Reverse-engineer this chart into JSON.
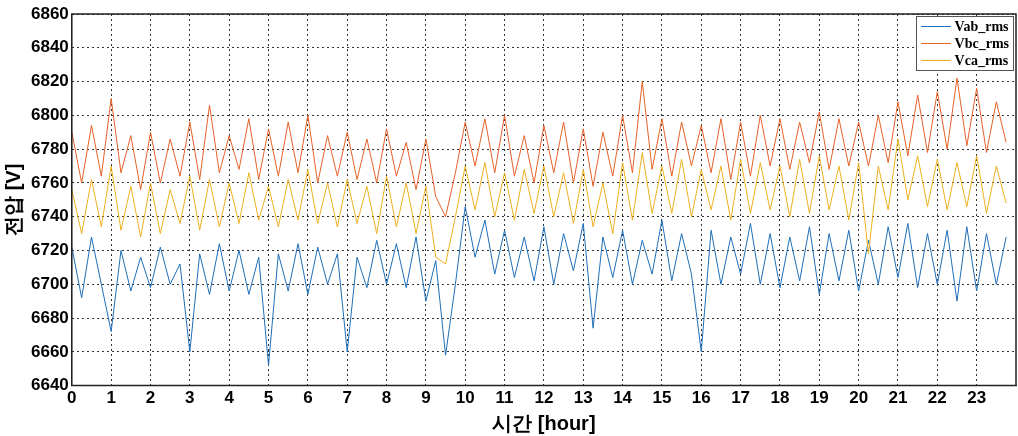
{
  "chart_data": {
    "type": "line",
    "xlabel": "시간 [hour]",
    "ylabel": "전압 [V]",
    "xlim": [
      0,
      24
    ],
    "ylim": [
      6640,
      6860
    ],
    "xticks": [
      0,
      1,
      2,
      3,
      4,
      5,
      6,
      7,
      8,
      9,
      10,
      11,
      12,
      13,
      14,
      15,
      16,
      17,
      18,
      19,
      20,
      21,
      22,
      23
    ],
    "yticks": [
      6640,
      6660,
      6680,
      6700,
      6720,
      6740,
      6760,
      6780,
      6800,
      6820,
      6840,
      6860
    ],
    "grid": true,
    "legend": "top right",
    "marker": "none",
    "line_style": "solid",
    "x": [
      0,
      0.25,
      0.5,
      0.75,
      1,
      1.25,
      1.5,
      1.75,
      2,
      2.25,
      2.5,
      2.75,
      3,
      3.25,
      3.5,
      3.75,
      4,
      4.25,
      4.5,
      4.75,
      5,
      5.25,
      5.5,
      5.75,
      6,
      6.25,
      6.5,
      6.75,
      7,
      7.25,
      7.5,
      7.75,
      8,
      8.25,
      8.5,
      8.75,
      9,
      9.25,
      9.5,
      9.75,
      10,
      10.25,
      10.5,
      10.75,
      11,
      11.25,
      11.5,
      11.75,
      12,
      12.25,
      12.5,
      12.75,
      13,
      13.25,
      13.5,
      13.75,
      14,
      14.25,
      14.5,
      14.75,
      15,
      15.25,
      15.5,
      15.75,
      16,
      16.25,
      16.5,
      16.75,
      17,
      17.25,
      17.5,
      17.75,
      18,
      18.25,
      18.5,
      18.75,
      19,
      19.25,
      19.5,
      19.75,
      20,
      20.25,
      20.5,
      20.75,
      21,
      21.25,
      21.5,
      21.75,
      22,
      22.25,
      22.5,
      22.75,
      23,
      23.25,
      23.5,
      23.75
    ],
    "series": [
      {
        "name": "Vab_rms",
        "color": "#1f6fb8",
        "values": [
          6722,
          6692,
          6728,
          6700,
          6672,
          6720,
          6696,
          6716,
          6698,
          6722,
          6700,
          6712,
          6660,
          6718,
          6694,
          6724,
          6696,
          6720,
          6694,
          6716,
          6652,
          6718,
          6696,
          6724,
          6694,
          6722,
          6700,
          6718,
          6660,
          6716,
          6698,
          6726,
          6700,
          6724,
          6698,
          6728,
          6690,
          6714,
          6658,
          6700,
          6746,
          6716,
          6738,
          6706,
          6732,
          6704,
          6728,
          6702,
          6734,
          6700,
          6730,
          6708,
          6736,
          6674,
          6728,
          6704,
          6732,
          6700,
          6726,
          6706,
          6738,
          6702,
          6730,
          6706,
          6660,
          6732,
          6700,
          6728,
          6706,
          6736,
          6700,
          6730,
          6698,
          6728,
          6702,
          6734,
          6694,
          6730,
          6702,
          6732,
          6696,
          6726,
          6700,
          6734,
          6704,
          6736,
          6698,
          6730,
          6700,
          6732,
          6690,
          6734,
          6696,
          6730,
          6700,
          6728
        ]
      },
      {
        "name": "Vbc_rms",
        "color": "#e56128",
        "values": [
          6790,
          6760,
          6794,
          6764,
          6810,
          6766,
          6788,
          6756,
          6790,
          6760,
          6786,
          6764,
          6796,
          6762,
          6806,
          6766,
          6788,
          6768,
          6798,
          6762,
          6792,
          6764,
          6796,
          6766,
          6800,
          6760,
          6788,
          6764,
          6790,
          6762,
          6786,
          6760,
          6792,
          6764,
          6784,
          6756,
          6786,
          6752,
          6740,
          6766,
          6796,
          6770,
          6798,
          6766,
          6800,
          6764,
          6788,
          6760,
          6794,
          6766,
          6796,
          6760,
          6792,
          6758,
          6790,
          6764,
          6800,
          6766,
          6820,
          6768,
          6798,
          6764,
          6796,
          6770,
          6794,
          6766,
          6798,
          6762,
          6796,
          6764,
          6800,
          6770,
          6798,
          6768,
          6796,
          6772,
          6802,
          6768,
          6798,
          6770,
          6796,
          6770,
          6800,
          6772,
          6808,
          6776,
          6812,
          6778,
          6814,
          6780,
          6822,
          6782,
          6816,
          6778,
          6808,
          6784
        ]
      },
      {
        "name": "Vca_rms",
        "color": "#edb120",
        "values": [
          6756,
          6730,
          6762,
          6734,
          6770,
          6732,
          6758,
          6728,
          6760,
          6730,
          6756,
          6736,
          6764,
          6732,
          6762,
          6734,
          6760,
          6736,
          6766,
          6738,
          6758,
          6734,
          6762,
          6738,
          6768,
          6736,
          6760,
          6734,
          6762,
          6736,
          6758,
          6730,
          6764,
          6734,
          6760,
          6730,
          6758,
          6716,
          6712,
          6740,
          6770,
          6744,
          6772,
          6740,
          6766,
          6738,
          6768,
          6742,
          6770,
          6740,
          6766,
          6736,
          6768,
          6734,
          6760,
          6730,
          6772,
          6738,
          6778,
          6742,
          6770,
          6742,
          6774,
          6740,
          6768,
          6744,
          6770,
          6738,
          6774,
          6742,
          6772,
          6744,
          6770,
          6740,
          6774,
          6742,
          6776,
          6744,
          6770,
          6738,
          6772,
          6718,
          6770,
          6744,
          6786,
          6750,
          6776,
          6746,
          6774,
          6744,
          6772,
          6746,
          6776,
          6742,
          6770,
          6748
        ]
      }
    ]
  }
}
